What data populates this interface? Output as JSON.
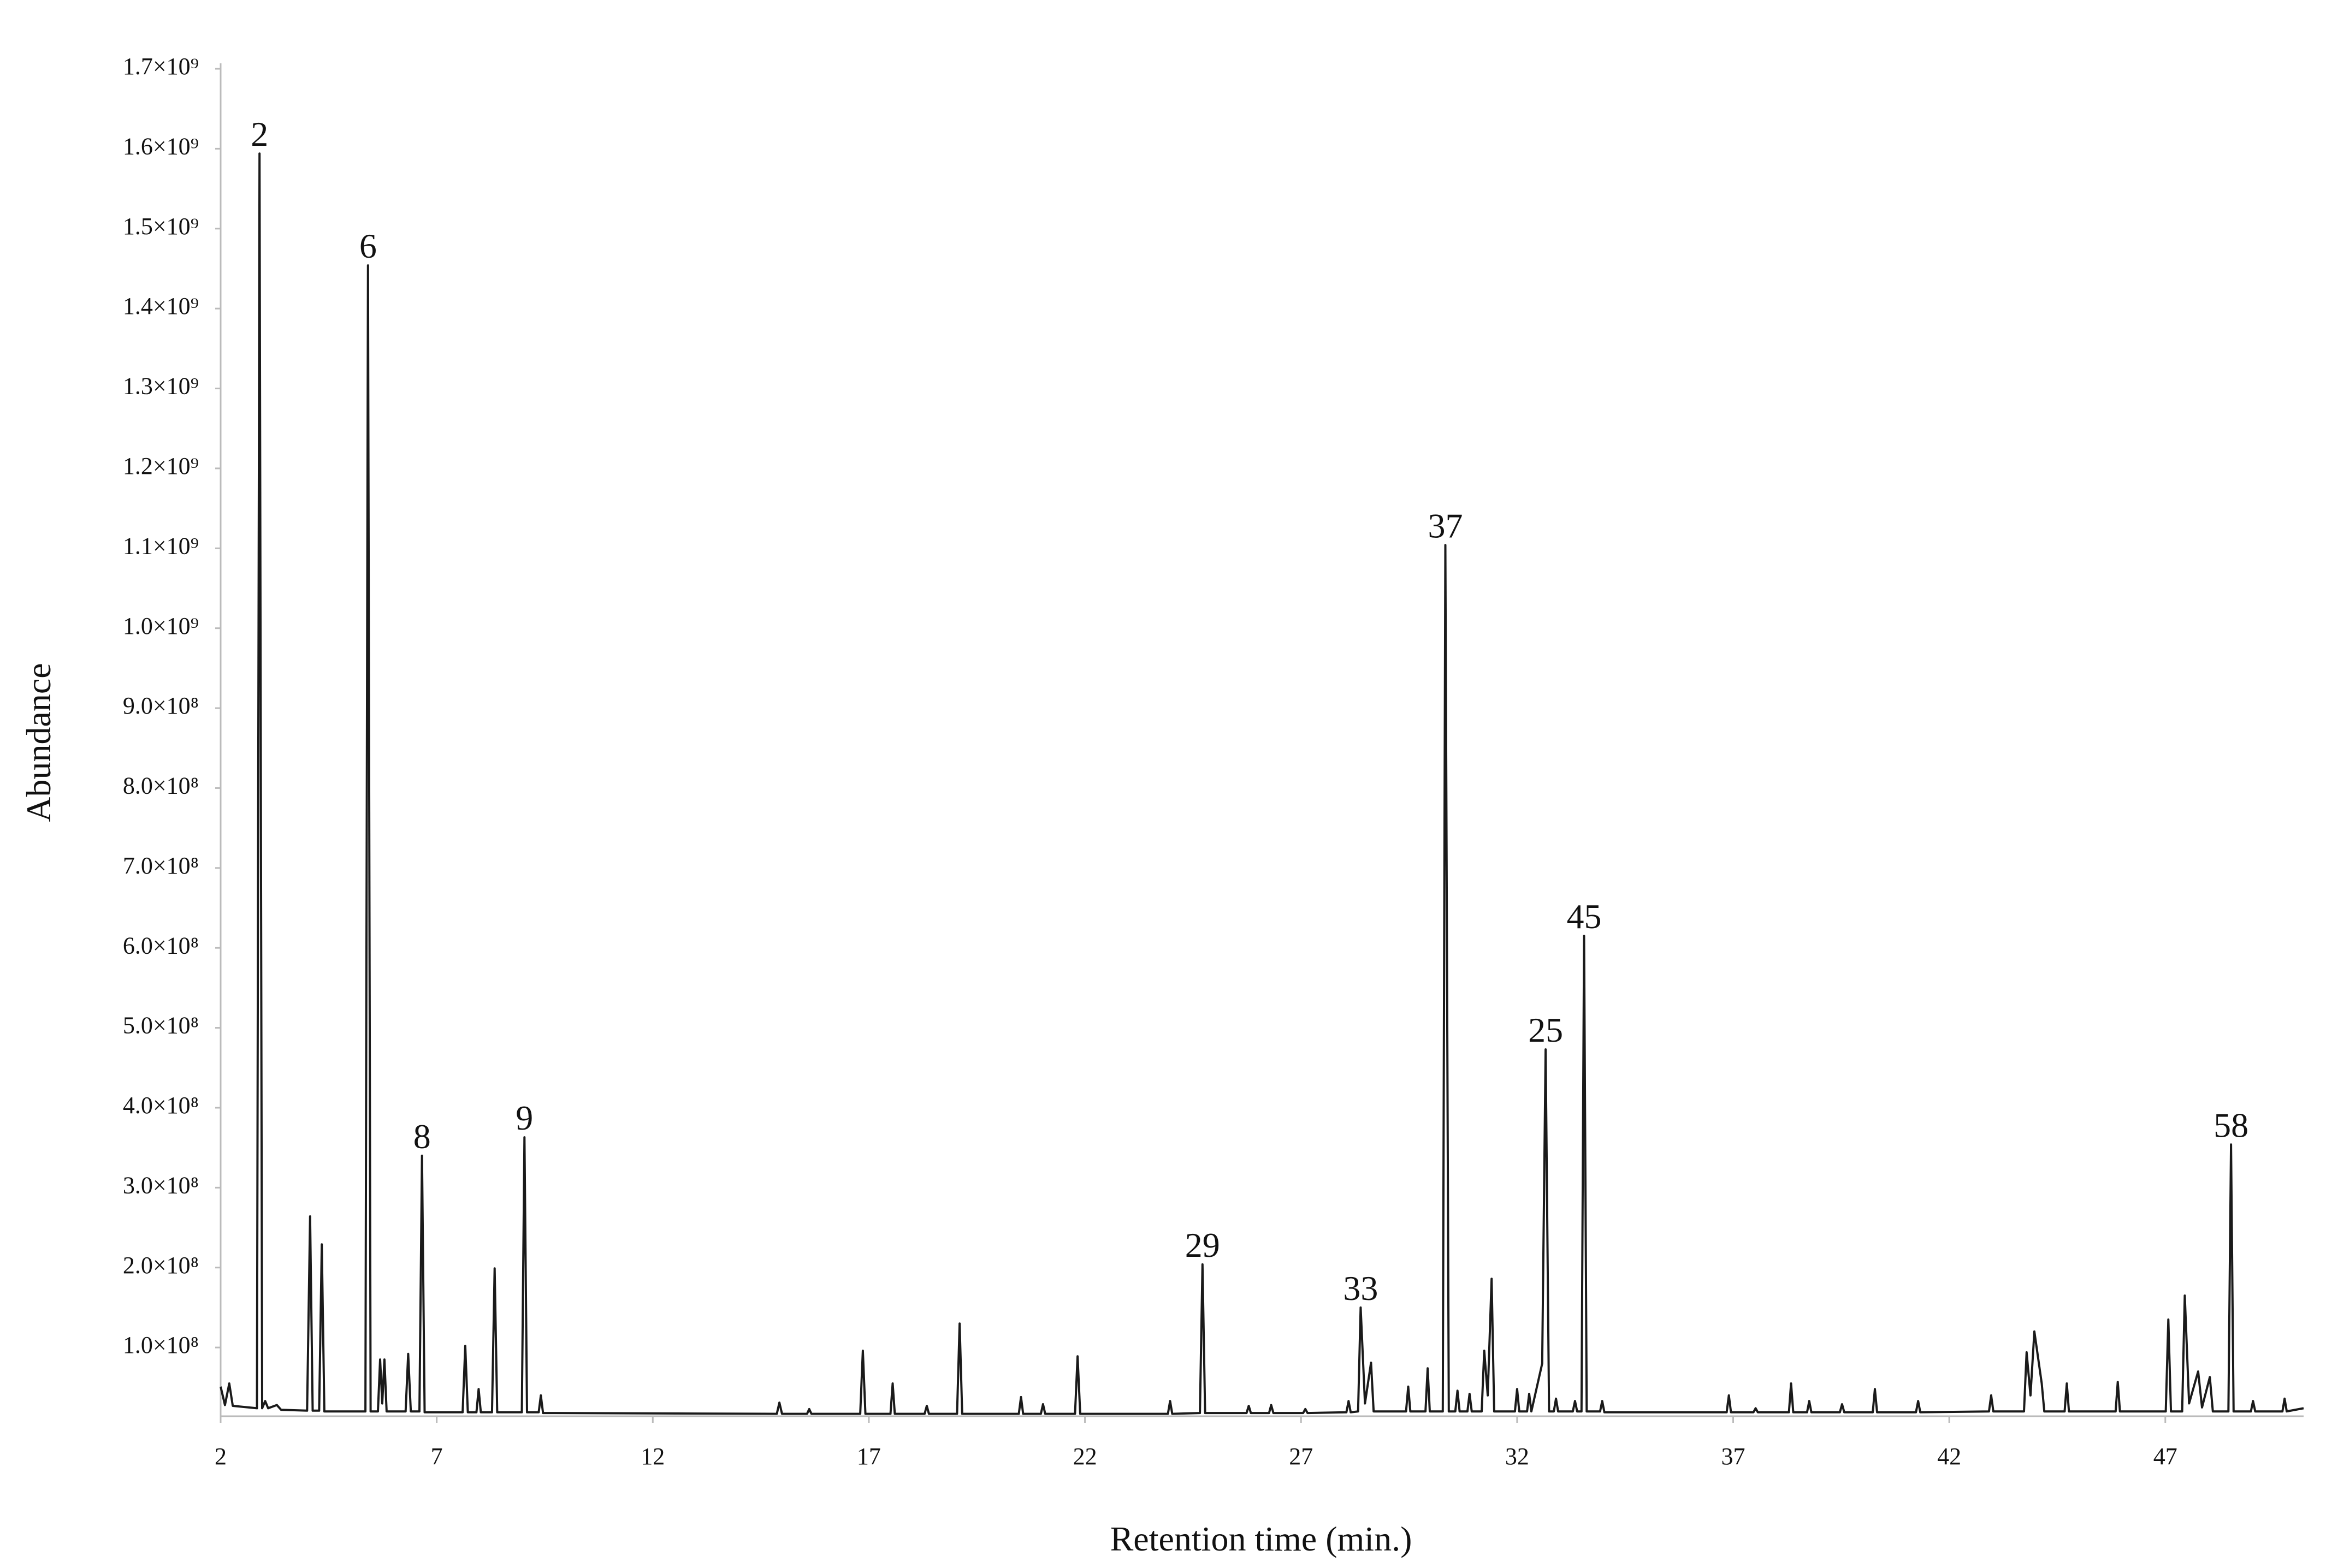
{
  "chart_data": {
    "type": "line",
    "xlabel": "Retention time (min.)",
    "ylabel": "Abundance",
    "color": "#1a1a1a",
    "xlim": [
      2,
      50.2
    ],
    "xticks": [
      2,
      7,
      12,
      17,
      22,
      27,
      32,
      37,
      42,
      47
    ],
    "ylim": [
      14000000,
      1700000000
    ],
    "yticks": [
      {
        "value": 100000000,
        "label": "1.0×10⁸"
      },
      {
        "value": 200000000,
        "label": "2.0×10⁸"
      },
      {
        "value": 300000000,
        "label": "3.0×10⁸"
      },
      {
        "value": 400000000,
        "label": "4.0×10⁸"
      },
      {
        "value": 500000000,
        "label": "5.0×10⁸"
      },
      {
        "value": 600000000,
        "label": "6.0×10⁸"
      },
      {
        "value": 700000000,
        "label": "7.0×10⁸"
      },
      {
        "value": 800000000,
        "label": "8.0×10⁸"
      },
      {
        "value": 900000000,
        "label": "9.0×10⁸"
      },
      {
        "value": 1000000000,
        "label": "1.0×10⁹"
      },
      {
        "value": 1100000000,
        "label": "1.1×10⁹"
      },
      {
        "value": 1200000000,
        "label": "1.2×10⁹"
      },
      {
        "value": 1300000000,
        "label": "1.3×10⁹"
      },
      {
        "value": 1400000000,
        "label": "1.4×10⁹"
      },
      {
        "value": 1500000000,
        "label": "1.5×10⁹"
      },
      {
        "value": 1600000000,
        "label": "1.6×10⁹"
      },
      {
        "value": 1700000000,
        "label": "1.7×10⁹"
      }
    ],
    "grid": false,
    "x": [
      2.0,
      2.1,
      2.2,
      2.28,
      2.84,
      2.9,
      2.96,
      3.03,
      3.1,
      3.3,
      3.4,
      4.0,
      4.07,
      4.13,
      4.28,
      4.34,
      4.4,
      5.35,
      5.41,
      5.47,
      5.64,
      5.69,
      5.74,
      5.79,
      5.84,
      6.28,
      6.34,
      6.4,
      6.6,
      6.66,
      6.72,
      7.6,
      7.66,
      7.72,
      7.92,
      7.97,
      8.02,
      8.28,
      8.34,
      8.4,
      8.97,
      9.03,
      9.09,
      9.36,
      9.41,
      9.46,
      14.87,
      14.93,
      14.99,
      15.57,
      15.62,
      15.67,
      16.8,
      16.86,
      16.92,
      17.5,
      17.55,
      17.6,
      18.29,
      18.34,
      18.39,
      19.04,
      19.1,
      19.16,
      20.47,
      20.52,
      20.57,
      20.98,
      21.03,
      21.08,
      21.77,
      21.83,
      21.89,
      23.92,
      23.97,
      24.02,
      24.66,
      24.72,
      24.78,
      25.74,
      25.79,
      25.84,
      26.26,
      26.31,
      26.36,
      27.05,
      27.1,
      27.15,
      28.05,
      28.1,
      28.15,
      28.32,
      28.38,
      28.48,
      28.62,
      28.68,
      29.43,
      29.48,
      29.53,
      29.88,
      29.93,
      29.98,
      30.28,
      30.34,
      30.42,
      30.57,
      30.62,
      30.67,
      30.85,
      30.9,
      30.95,
      31.18,
      31.24,
      31.32,
      31.41,
      31.47,
      31.95,
      32.0,
      32.05,
      32.23,
      32.28,
      32.33,
      32.58,
      32.66,
      32.74,
      32.85,
      32.9,
      32.95,
      33.29,
      33.34,
      33.39,
      33.49,
      33.55,
      33.61,
      33.92,
      33.97,
      34.02,
      36.85,
      36.9,
      36.95,
      37.47,
      37.52,
      37.57,
      38.29,
      38.34,
      38.39,
      38.71,
      38.76,
      38.81,
      39.47,
      39.52,
      39.57,
      40.23,
      40.28,
      40.33,
      41.23,
      41.28,
      41.33,
      42.92,
      42.97,
      43.02,
      43.73,
      43.79,
      43.88,
      43.97,
      44.14,
      44.2,
      44.67,
      44.72,
      44.77,
      45.85,
      45.9,
      45.95,
      47.01,
      47.07,
      47.13,
      47.39,
      47.45,
      47.55,
      47.76,
      47.85,
      48.03,
      48.1,
      48.46,
      48.52,
      48.58,
      48.98,
      49.03,
      49.08,
      49.71,
      49.76,
      49.81,
      50.2
    ],
    "values": [
      51000000,
      28000000,
      55000000,
      27000000,
      24000000,
      1594000000,
      24000000,
      33000000,
      24000000,
      28000000,
      22000000,
      21000000,
      264000000,
      21000000,
      21000000,
      229000000,
      20000000,
      20000000,
      1454000000,
      20000000,
      20000000,
      85000000,
      30000000,
      85000000,
      20000000,
      20000000,
      92000000,
      20000000,
      20000000,
      340000000,
      19000000,
      19000000,
      102000000,
      19000000,
      19000000,
      48000000,
      19000000,
      19000000,
      199000000,
      19000000,
      19000000,
      363000000,
      19000000,
      19000000,
      40000000,
      18000000,
      17000000,
      31000000,
      17000000,
      17000000,
      23000000,
      17000000,
      17000000,
      96000000,
      17000000,
      17000000,
      55000000,
      17000000,
      17000000,
      27000000,
      17000000,
      17000000,
      130000000,
      17000000,
      17000000,
      38000000,
      17000000,
      17000000,
      29000000,
      17000000,
      17000000,
      89000000,
      17000000,
      17000000,
      33000000,
      17000000,
      18000000,
      204000000,
      18000000,
      18000000,
      27000000,
      18000000,
      18000000,
      28000000,
      18000000,
      18000000,
      23000000,
      18000000,
      19000000,
      33000000,
      19000000,
      20000000,
      150000000,
      30000000,
      81000000,
      20000000,
      20000000,
      51000000,
      20000000,
      20000000,
      74000000,
      20000000,
      20000000,
      1104000000,
      20000000,
      20000000,
      46000000,
      20000000,
      20000000,
      42000000,
      20000000,
      20000000,
      96000000,
      40000000,
      186000000,
      20000000,
      20000000,
      48000000,
      20000000,
      20000000,
      42000000,
      20000000,
      80000000,
      473000000,
      20000000,
      20000000,
      36000000,
      20000000,
      20000000,
      33000000,
      20000000,
      20000000,
      615000000,
      20000000,
      20000000,
      33000000,
      19000000,
      19000000,
      40000000,
      19000000,
      19000000,
      24000000,
      19000000,
      19000000,
      55000000,
      19000000,
      19000000,
      33000000,
      19000000,
      19000000,
      29000000,
      19000000,
      19000000,
      48000000,
      19000000,
      19000000,
      33000000,
      19000000,
      20000000,
      40000000,
      20000000,
      20000000,
      94000000,
      40000000,
      120000000,
      55000000,
      20000000,
      20000000,
      55000000,
      20000000,
      20000000,
      57000000,
      20000000,
      20000000,
      135000000,
      20000000,
      20000000,
      165000000,
      30000000,
      70000000,
      25000000,
      63000000,
      20000000,
      20000000,
      354000000,
      20000000,
      20000000,
      33000000,
      20000000,
      20000000,
      36000000,
      20000000,
      24000000
    ],
    "annotations": [
      {
        "text": "2",
        "x": 2.9,
        "y": 1594000000
      },
      {
        "text": "6",
        "x": 5.41,
        "y": 1454000000
      },
      {
        "text": "8",
        "x": 6.66,
        "y": 340000000
      },
      {
        "text": "9",
        "x": 9.03,
        "y": 363000000
      },
      {
        "text": "29",
        "x": 24.72,
        "y": 204000000
      },
      {
        "text": "33",
        "x": 28.38,
        "y": 150000000
      },
      {
        "text": "37",
        "x": 30.34,
        "y": 1104000000
      },
      {
        "text": "25",
        "x": 32.66,
        "y": 473000000
      },
      {
        "text": "45",
        "x": 33.55,
        "y": 615000000
      },
      {
        "text": "58",
        "x": 48.52,
        "y": 354000000
      }
    ]
  }
}
